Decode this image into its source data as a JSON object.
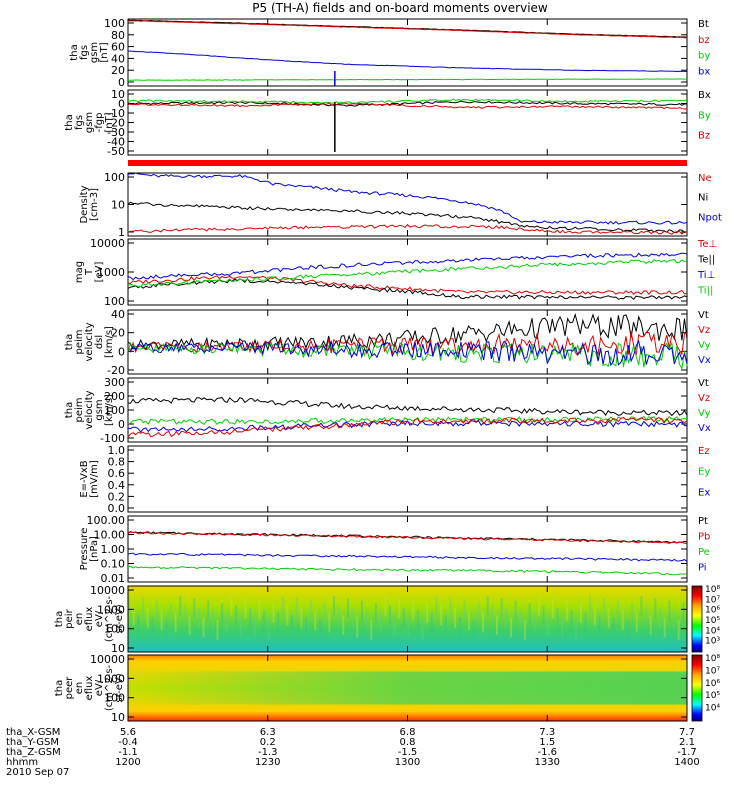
{
  "title": "P5 (TH-A) fields and on-board moments overview",
  "date": "2010 Sep 07",
  "xaxis": {
    "ticks": [
      "5.6",
      "6.3",
      "6.8",
      "7.3",
      "7.7"
    ],
    "rows": [
      {
        "label": "tha_X-GSM",
        "values": [
          "5.6",
          "6.3",
          "6.8",
          "7.3",
          "7.7"
        ]
      },
      {
        "label": "tha_Y-GSM",
        "values": [
          "-0.4",
          "0.2",
          "0.8",
          "1.5",
          "2.1"
        ]
      },
      {
        "label": "tha_Z-GSM",
        "values": [
          "-1.1",
          "-1.3",
          "-1.5",
          "-1.6",
          "-1.7"
        ]
      },
      {
        "label": "hhmm",
        "values": [
          "1200",
          "1230",
          "1300",
          "1330",
          "1400"
        ]
      }
    ]
  },
  "colors": {
    "black": "#000000",
    "red": "#e00000",
    "green": "#00d000",
    "blue": "#0000e0"
  },
  "chart_data": [
    {
      "type": "line",
      "id": "fgs",
      "ylabel": [
        "tha",
        "fgs",
        "gsm",
        "[nT]"
      ],
      "yticks": [
        "100",
        "80",
        "60",
        "40",
        "20",
        "0"
      ],
      "ylim": [
        -10,
        105
      ],
      "legend": [
        "Bt",
        "bz",
        "by",
        "bx"
      ],
      "series": [
        {
          "name": "Bt",
          "color": "black",
          "x": [
            0,
            0.2,
            0.4,
            0.6,
            0.8,
            1
          ],
          "y": [
            103,
            98,
            92,
            86,
            79,
            74
          ]
        },
        {
          "name": "bz",
          "color": "red",
          "x": [
            0,
            0.2,
            0.4,
            0.6,
            0.8,
            1
          ],
          "y": [
            102,
            97,
            91,
            85,
            78,
            73
          ]
        },
        {
          "name": "bx",
          "color": "blue",
          "x": [
            0,
            0.1,
            0.2,
            0.3,
            0.4,
            0.6,
            0.8,
            1
          ],
          "y": [
            50,
            45,
            38,
            32,
            27,
            21,
            17,
            15
          ]
        },
        {
          "name": "by",
          "color": "green",
          "x": [
            0,
            0.5,
            1
          ],
          "y": [
            0,
            1,
            2
          ]
        }
      ]
    },
    {
      "type": "line",
      "id": "fgs_dmpa",
      "ylabel": [
        "tha",
        "fgs",
        "gsm",
        "-fgp",
        "[nT]"
      ],
      "yticks": [
        "10",
        "0",
        "-10",
        "-20",
        "-30",
        "-40",
        "-50"
      ],
      "ylim": [
        -55,
        12
      ],
      "legend": [
        "Bx",
        "By",
        "Bz"
      ],
      "series": [
        {
          "name": "Bx",
          "color": "black",
          "x": [
            0,
            0.2,
            0.4,
            0.6,
            0.8,
            1
          ],
          "y": [
            -2,
            -1,
            -4,
            0,
            -2,
            -3
          ]
        },
        {
          "name": "By",
          "color": "green",
          "x": [
            0,
            0.2,
            0.4,
            0.6,
            0.8,
            1
          ],
          "y": [
            1,
            0,
            -1,
            2,
            0,
            1
          ]
        },
        {
          "name": "Bz",
          "color": "red",
          "x": [
            0,
            0.2,
            0.4,
            0.6,
            0.8,
            1
          ],
          "y": [
            -3,
            -4,
            -2,
            -6,
            -5,
            -7
          ]
        }
      ]
    },
    {
      "type": "line",
      "id": "density",
      "log": true,
      "ylabel": [
        "Density",
        "[cm-3]"
      ],
      "yticks": [
        "100",
        "10",
        "1"
      ],
      "ylim": [
        0.6,
        200
      ],
      "legend": [
        "Ne",
        "Ni",
        "Npot"
      ],
      "series": [
        {
          "name": "Npot",
          "color": "blue",
          "x": [
            0,
            0.05,
            0.2,
            0.26,
            0.4,
            0.55,
            0.65,
            0.7,
            1
          ],
          "y": [
            200,
            150,
            150,
            70,
            35,
            20,
            8,
            2.2,
            2
          ]
        },
        {
          "name": "Ni",
          "color": "black",
          "x": [
            0,
            0.2,
            0.4,
            0.6,
            0.7,
            0.8,
            1
          ],
          "y": [
            12,
            8,
            6,
            3.5,
            1.5,
            1.2,
            0.9
          ]
        },
        {
          "name": "Ne",
          "color": "red",
          "x": [
            0,
            0.3,
            0.5,
            0.65,
            0.75,
            1
          ],
          "y": [
            0.9,
            1.3,
            1.5,
            1.4,
            0.9,
            0.8
          ]
        }
      ]
    },
    {
      "type": "line",
      "id": "temp",
      "log": true,
      "ylabel": [
        "mag",
        "T",
        "[eV]"
      ],
      "yticks": [
        "10000",
        "1000",
        "100"
      ],
      "ylim": [
        100,
        12000
      ],
      "legend": [
        "Te⊥",
        "Te||",
        "Ti⊥",
        "Ti||"
      ],
      "series": [
        {
          "name": "Te⊥",
          "color": "red",
          "x": [
            0,
            0.2,
            0.4,
            0.6,
            1
          ],
          "y": [
            500,
            800,
            400,
            250,
            250
          ]
        },
        {
          "name": "Te||",
          "color": "black",
          "x": [
            0,
            0.2,
            0.4,
            0.6,
            1
          ],
          "y": [
            350,
            600,
            350,
            180,
            170
          ]
        },
        {
          "name": "Ti⊥",
          "color": "blue",
          "x": [
            0,
            0.2,
            0.4,
            0.6,
            0.8,
            1
          ],
          "y": [
            700,
            1000,
            1800,
            2500,
            3500,
            4000
          ]
        },
        {
          "name": "Ti||",
          "color": "green",
          "x": [
            0,
            0.2,
            0.4,
            0.6,
            0.8,
            1
          ],
          "y": [
            400,
            600,
            900,
            1400,
            2000,
            2500
          ]
        }
      ]
    },
    {
      "type": "line",
      "id": "vel_dsl",
      "ylabel": [
        "tha",
        "peim",
        "velocity",
        "dsl",
        "[km/s]"
      ],
      "yticks": [
        "40",
        "20",
        "0",
        "-20"
      ],
      "ylim": [
        -30,
        42
      ],
      "legend": [
        "Vt",
        "Vz",
        "Vy",
        "Vx"
      ],
      "series": [
        {
          "name": "Vt",
          "color": "black",
          "x": [
            0,
            0.3,
            0.5,
            0.7,
            0.8,
            1
          ],
          "y": [
            3,
            5,
            10,
            20,
            25,
            20
          ]
        },
        {
          "name": "Vz",
          "color": "red",
          "x": [
            0,
            0.5,
            1
          ],
          "y": [
            0,
            2,
            5
          ]
        },
        {
          "name": "Vy",
          "color": "green",
          "x": [
            0,
            0.5,
            1
          ],
          "y": [
            0,
            -5,
            -10
          ]
        },
        {
          "name": "Vx",
          "color": "blue",
          "x": [
            0,
            0.5,
            1
          ],
          "y": [
            0,
            -3,
            -8
          ]
        }
      ]
    },
    {
      "type": "line",
      "id": "vel_gsm",
      "ylabel": [
        "tha",
        "peim",
        "velocity",
        "gsm",
        "[km/s]"
      ],
      "yticks": [
        "300",
        "200",
        "100",
        "0",
        "-100"
      ],
      "ylim": [
        -160,
        310
      ],
      "legend": [
        "Vt",
        "Vz",
        "Vy",
        "Vx"
      ],
      "series": [
        {
          "name": "Vt",
          "color": "black",
          "x": [
            0,
            0.2,
            0.4,
            0.6,
            0.8,
            1
          ],
          "y": [
            140,
            150,
            100,
            80,
            60,
            50
          ]
        },
        {
          "name": "Vy",
          "color": "green",
          "x": [
            0,
            0.2,
            0.5,
            1
          ],
          "y": [
            -10,
            -10,
            0,
            10
          ]
        },
        {
          "name": "Vx",
          "color": "blue",
          "x": [
            0,
            0.2,
            0.5,
            1
          ],
          "y": [
            -70,
            -60,
            -20,
            -30
          ]
        },
        {
          "name": "Vz",
          "color": "red",
          "x": [
            0,
            0.2,
            0.5,
            1
          ],
          "y": [
            -110,
            -80,
            -10,
            0
          ]
        }
      ]
    },
    {
      "type": "line",
      "id": "efield",
      "ylabel": [
        "E=-VxB",
        "[mV/m]"
      ],
      "yticks": [
        "1.0",
        "0.8",
        "0.6",
        "0.4",
        "0.2",
        "0.0"
      ],
      "ylim": [
        0,
        1
      ],
      "legend": [
        "Ez",
        "Ey",
        "Ex"
      ],
      "series": []
    },
    {
      "type": "line",
      "id": "pressure",
      "log": true,
      "ylabel": [
        "Pressure",
        "[nPa]"
      ],
      "yticks": [
        "100.00",
        "10.00",
        "1.00",
        "0.10",
        "0.01"
      ],
      "ylim": [
        0.01,
        100
      ],
      "legend": [
        "Pt",
        "Pb",
        "Pe",
        "Pi"
      ],
      "series": [
        {
          "name": "Pt",
          "color": "black",
          "x": [
            0,
            0.3,
            0.6,
            1
          ],
          "y": [
            10,
            7,
            4.5,
            2.5
          ]
        },
        {
          "name": "Pb",
          "color": "red",
          "x": [
            0,
            0.3,
            0.6,
            1
          ],
          "y": [
            9.5,
            6.5,
            4.2,
            2.3
          ]
        },
        {
          "name": "Pi",
          "color": "blue",
          "x": [
            0,
            0.3,
            0.6,
            1
          ],
          "y": [
            0.5,
            0.4,
            0.3,
            0.2
          ]
        },
        {
          "name": "Pe",
          "color": "green",
          "x": [
            0,
            0.3,
            0.6,
            1
          ],
          "y": [
            0.08,
            0.06,
            0.05,
            0.03
          ]
        }
      ]
    },
    {
      "type": "heatmap",
      "id": "ion_eflux",
      "ylabel": [
        "tha",
        "peir",
        "en",
        "eflux",
        "eV/",
        "(cm^2-s-",
        "sr-eV)"
      ],
      "yticks": [
        "10000",
        "1000",
        "100",
        "10"
      ],
      "colorbar": [
        "10⁸",
        "10⁷",
        "10⁶",
        "10⁵",
        "10⁴",
        "10³"
      ]
    },
    {
      "type": "heatmap",
      "id": "elec_eflux",
      "ylabel": [
        "tha",
        "peer",
        "en",
        "eflux",
        "eV/",
        "(cm^2-s-",
        "sr-eV)"
      ],
      "yticks": [
        "10000",
        "1000",
        "100",
        "10"
      ],
      "colorbar": [
        "10⁸",
        "10⁷",
        "10⁶",
        "10⁵",
        "10⁴"
      ]
    }
  ]
}
